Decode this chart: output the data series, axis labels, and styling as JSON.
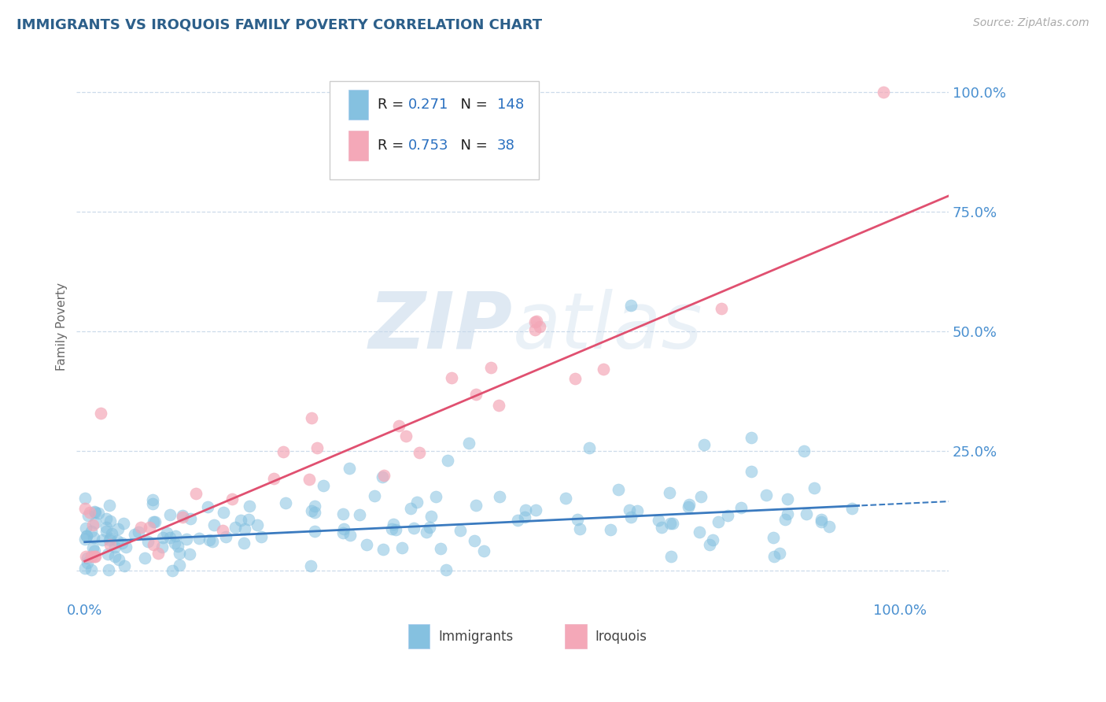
{
  "title": "IMMIGRANTS VS IROQUOIS FAMILY POVERTY CORRELATION CHART",
  "source": "Source: ZipAtlas.com",
  "ylabel": "Family Poverty",
  "r_immigrants": 0.271,
  "n_immigrants": 148,
  "r_iroquois": 0.753,
  "n_iroquois": 38,
  "immigrants_color": "#85c1e0",
  "iroquois_color": "#f4a8b8",
  "trend_immigrants_color": "#3a7abf",
  "trend_iroquois_color": "#e05070",
  "title_color": "#2c5f8a",
  "number_color": "#2a70c0",
  "axis_tick_color": "#4a90d0",
  "watermark_color": "#c5d8ea",
  "background_color": "#ffffff",
  "grid_color": "#c8d8e8",
  "xlim": [
    -0.01,
    1.06
  ],
  "ylim": [
    -0.06,
    1.08
  ],
  "ytick_positions": [
    0.0,
    0.25,
    0.5,
    0.75,
    1.0
  ],
  "yticklabels": [
    "",
    "25.0%",
    "50.0%",
    "75.0%",
    "100.0%"
  ],
  "xticklabels_pos": [
    0.0,
    1.0
  ],
  "xticklabels": [
    "0.0%",
    "100.0%"
  ],
  "trend_imm_slope": 0.08,
  "trend_imm_intercept": 0.06,
  "trend_iro_slope": 0.72,
  "trend_iro_intercept": 0.02
}
